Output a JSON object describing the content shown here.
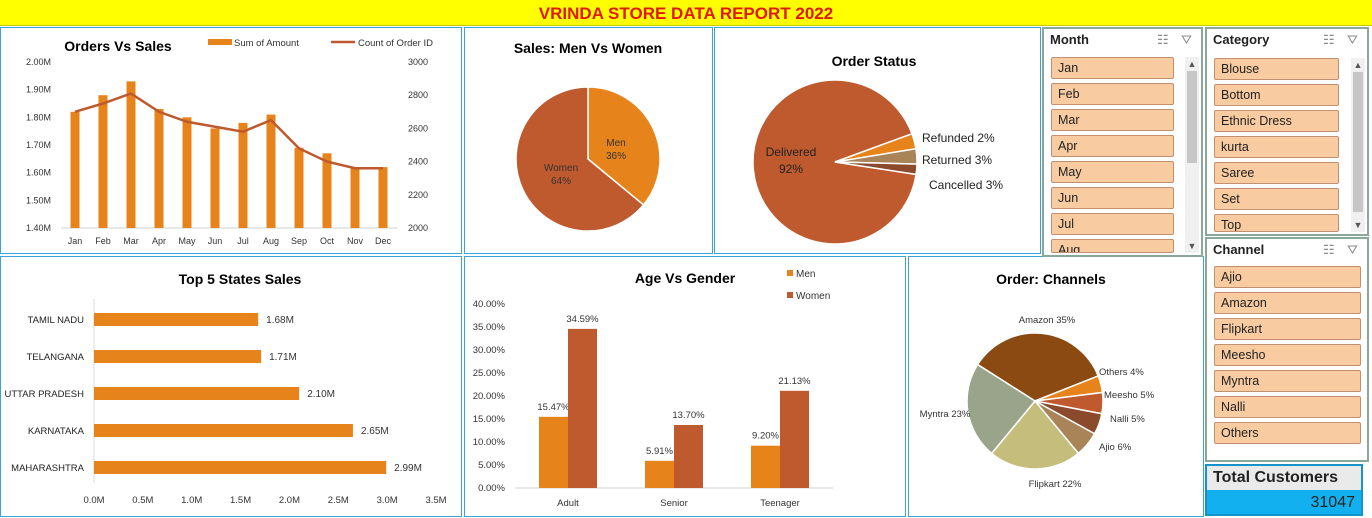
{
  "banner": {
    "title": "VRINDA STORE DATA REPORT 2022"
  },
  "colors": {
    "men": "#e6831a",
    "women": "#be5a2e",
    "bar": "#e6831a",
    "line": "#be5a2e",
    "banner_bg": "#ffff00",
    "banner_text": "#e0190f",
    "slicer_btn": "#f8cba0",
    "total_bg": "#12b0ef"
  },
  "chart_data": [
    {
      "id": "orders-vs-sales",
      "type": "bar",
      "title": "Orders Vs Sales",
      "categories": [
        "Jan",
        "Feb",
        "Mar",
        "Apr",
        "May",
        "Jun",
        "Jul",
        "Aug",
        "Sep",
        "Oct",
        "Nov",
        "Dec"
      ],
      "series": [
        {
          "name": "Sum of Amount",
          "type": "bar",
          "axis": "left",
          "values": [
            1.82,
            1.88,
            1.93,
            1.83,
            1.8,
            1.76,
            1.78,
            1.81,
            1.69,
            1.67,
            1.62,
            1.62
          ]
        },
        {
          "name": "Count of Order ID",
          "type": "line",
          "axis": "right",
          "values": [
            2700,
            2750,
            2810,
            2700,
            2640,
            2610,
            2580,
            2650,
            2480,
            2400,
            2360,
            2360
          ]
        }
      ],
      "y_left": {
        "ylim": [
          1.4,
          2.0
        ],
        "ticks": [
          "1.40M",
          "1.50M",
          "1.60M",
          "1.70M",
          "1.80M",
          "1.90M",
          "2.00M"
        ]
      },
      "y_right": {
        "ylim": [
          2000,
          3000
        ],
        "ticks": [
          "2000",
          "2200",
          "2400",
          "2600",
          "2800",
          "3000"
        ]
      },
      "legend": "top-right"
    },
    {
      "id": "men-vs-women",
      "type": "pie",
      "title": "Sales: Men Vs Women",
      "slices": [
        {
          "label": "Men",
          "value": 36,
          "pct_text": "36%"
        },
        {
          "label": "Women",
          "value": 64,
          "pct_text": "64%"
        }
      ]
    },
    {
      "id": "order-status",
      "type": "pie",
      "title": "Order Status",
      "slices": [
        {
          "label": "Delivered",
          "value": 92,
          "pct_text": "92%"
        },
        {
          "label": "Cancelled",
          "value": 3,
          "pct_text": "3%"
        },
        {
          "label": "Returned",
          "value": 3,
          "pct_text": "3%"
        },
        {
          "label": "Refunded",
          "value": 2,
          "pct_text": "2%"
        }
      ]
    },
    {
      "id": "top-states",
      "type": "bar",
      "orientation": "horizontal",
      "title": "Top 5 States Sales",
      "categories": [
        "TAMIL NADU",
        "TELANGANA",
        "UTTAR PRADESH",
        "KARNATAKA",
        "MAHARASHTRA"
      ],
      "values": [
        1.68,
        1.71,
        2.1,
        2.65,
        2.99
      ],
      "value_labels": [
        "1.68M",
        "1.71M",
        "2.10M",
        "2.65M",
        "2.99M"
      ],
      "xlim": [
        0,
        3.5
      ],
      "x_ticks": [
        "0.0M",
        "0.5M",
        "1.0M",
        "1.5M",
        "2.0M",
        "2.5M",
        "3.0M",
        "3.5M"
      ]
    },
    {
      "id": "age-vs-gender",
      "type": "bar",
      "title": "Age Vs Gender",
      "categories": [
        "Adult",
        "Senior",
        "Teenager"
      ],
      "series": [
        {
          "name": "Men",
          "values": [
            15.47,
            5.91,
            9.2
          ],
          "labels": [
            "15.47%",
            "5.91%",
            "9.20%"
          ]
        },
        {
          "name": "Women",
          "values": [
            34.59,
            13.7,
            21.13
          ],
          "labels": [
            "34.59%",
            "13.70%",
            "21.13%"
          ]
        }
      ],
      "ylim": [
        0,
        40
      ],
      "y_ticks": [
        "0.00%",
        "5.00%",
        "10.00%",
        "15.00%",
        "20.00%",
        "25.00%",
        "30.00%",
        "35.00%",
        "40.00%"
      ],
      "legend": "top-right"
    },
    {
      "id": "order-channels",
      "type": "pie",
      "title": "Order: Channels",
      "slices": [
        {
          "label": "Amazon",
          "value": 35,
          "text": "Amazon 35%"
        },
        {
          "label": "Others",
          "value": 4,
          "text": "Others 4%"
        },
        {
          "label": "Meesho",
          "value": 5,
          "text": "Meesho 5%"
        },
        {
          "label": "Nalli",
          "value": 5,
          "text": "Nalli 5%"
        },
        {
          "label": "Ajio",
          "value": 6,
          "text": "Ajio 6%"
        },
        {
          "label": "Flipkart",
          "value": 22,
          "text": "Flipkart 22%"
        },
        {
          "label": "Myntra",
          "value": 23,
          "text": "Myntra  23%"
        }
      ]
    }
  ],
  "slicers": {
    "month": {
      "title": "Month",
      "items": [
        "Jan",
        "Feb",
        "Mar",
        "Apr",
        "May",
        "Jun",
        "Jul",
        "Aug"
      ]
    },
    "category": {
      "title": "Category",
      "items": [
        "Blouse",
        "Bottom",
        "Ethnic Dress",
        "kurta",
        "Saree",
        "Set",
        "Top"
      ]
    },
    "channel": {
      "title": "Channel",
      "items": [
        "Ajio",
        "Amazon",
        "Flipkart",
        "Meesho",
        "Myntra",
        "Nalli",
        "Others"
      ]
    }
  },
  "total_customers": {
    "label": "Total Customers",
    "value": "31047"
  }
}
